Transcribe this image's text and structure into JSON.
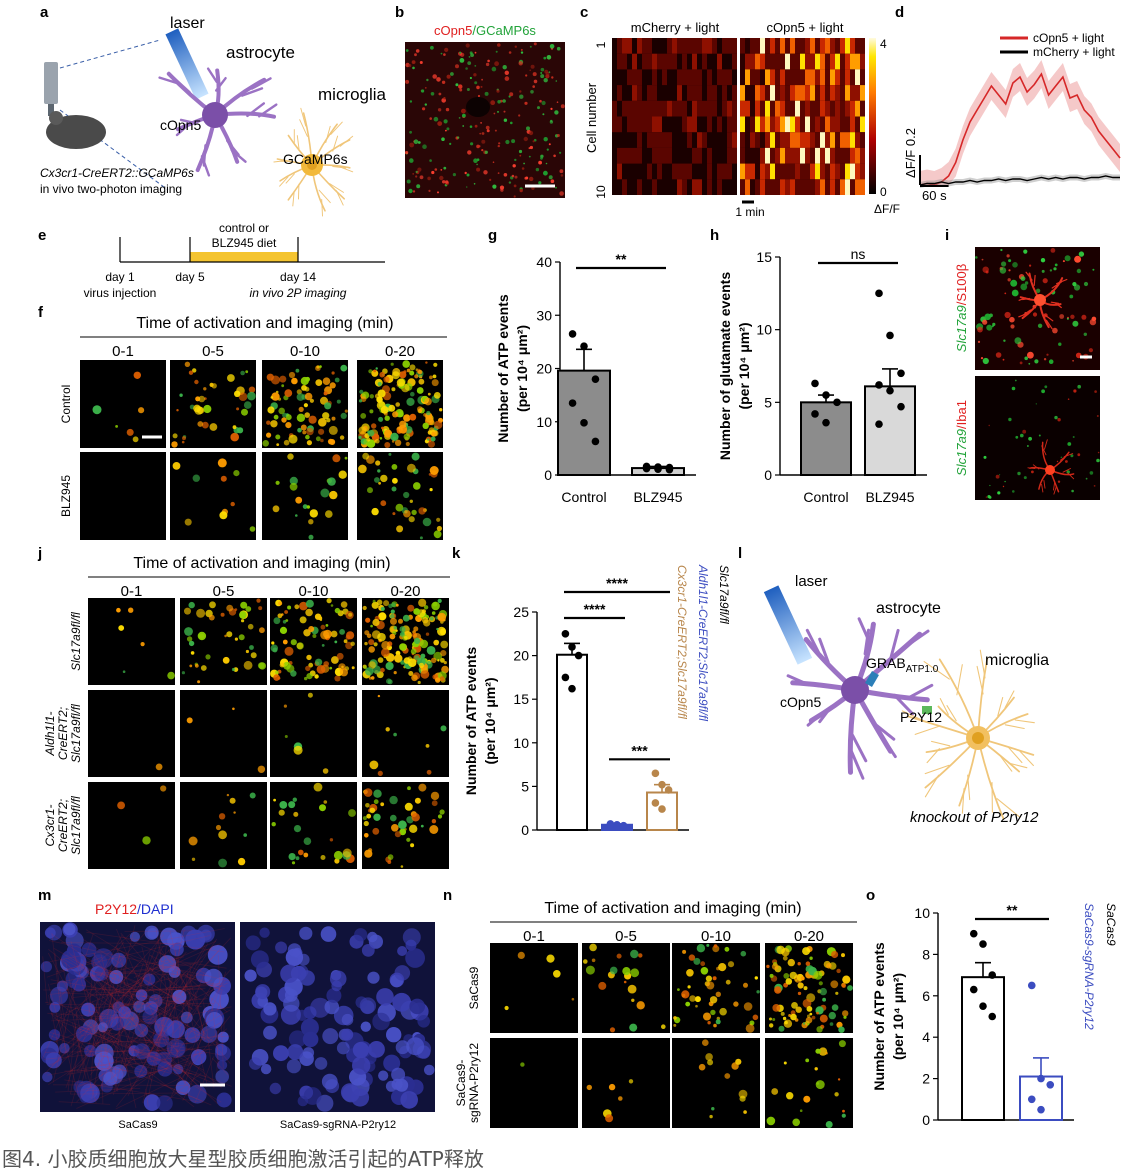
{
  "caption": "图4. 小胶质细胞放大星型胶质细胞激活引起的ATP释放",
  "panels": {
    "a": {
      "letter": "a",
      "laser": "laser",
      "astrocyte": "astrocyte",
      "microglia": "microglia",
      "cOpn5": "cOpn5",
      "GCaMP6s": "GCaMP6s",
      "mouse_line": "Cx3cr1-CreERT2::GCaMP6s",
      "imaging": "in vivo two-photon imaging"
    },
    "b": {
      "letter": "b",
      "stain_red": "cOpn5",
      "stain_green": "/GCaMP6s"
    },
    "c": {
      "letter": "c",
      "left": "mCherry + light",
      "right": "cOpn5 + light",
      "ylabel": "Cell number",
      "row_first": "1",
      "row_last": "10",
      "time_scale": "1 min",
      "cbar_max": "4",
      "cbar_min": "0",
      "cbar_label": "ΔF/F"
    },
    "e": {
      "letter": "e",
      "diet": [
        "control or",
        "BLZ945 diet"
      ],
      "day1": "day 1",
      "injection": "virus injection",
      "day5": "day 5",
      "day14": "day 14",
      "imaging": "in vivo 2P imaging"
    },
    "f": {
      "letter": "f",
      "title": "Time of activation and imaging (min)",
      "columns": [
        "0-1",
        "0-5",
        "0-10",
        "0-20"
      ],
      "rows": [
        [
          "Control"
        ],
        [
          "BLZ945"
        ]
      ]
    },
    "i": {
      "letter": "i",
      "top": [
        "Slc17a9",
        "/S100β"
      ],
      "bottom": [
        "Slc17a9",
        "/Iba1"
      ]
    },
    "j": {
      "letter": "j",
      "title": "Time of activation and imaging (min)",
      "columns": [
        "0-1",
        "0-5",
        "0-10",
        "0-20"
      ],
      "rows": [
        [
          "Slc17a9fl/fl"
        ],
        [
          "Aldh1l1-",
          "CreERT2;",
          "Slc17a9fl/fl"
        ],
        [
          "Cx3cr1-",
          "CreERT2;",
          "Slc17a9fl/fl"
        ]
      ]
    },
    "l": {
      "letter": "l",
      "laser": "laser",
      "astrocyte": "astrocyte",
      "grab": [
        "GRAB",
        "ATP1.0"
      ],
      "microglia": "microglia",
      "cOpn5": "cOpn5",
      "p2y12": "P2Y12",
      "knockout": "knockout of P2ry12"
    },
    "m": {
      "letter": "m",
      "stain_red": "P2Y12",
      "stain_blue": "/DAPI",
      "left": "SaCas9",
      "right": "SaCas9-sgRNA-P2ry12"
    },
    "n": {
      "letter": "n",
      "title": "Time of activation and imaging (min)",
      "columns": [
        "0-1",
        "0-5",
        "0-10",
        "0-20"
      ],
      "rows": [
        [
          "SaCas9"
        ],
        [
          "SaCas9-",
          "sgRNA-P2ry12"
        ]
      ]
    }
  },
  "chart_data": [
    {
      "type": "line",
      "letter": "d",
      "x": [
        0,
        15,
        30,
        45,
        60,
        75,
        90,
        105,
        120,
        135,
        150,
        165,
        180,
        195,
        210,
        225,
        240,
        255,
        270,
        285,
        300,
        315,
        330,
        345,
        360,
        375,
        390,
        405,
        420
      ],
      "xlim": [
        0,
        420
      ],
      "ylim": [
        -0.05,
        0.85
      ],
      "series": [
        {
          "name": "cOpn5 + light",
          "color": "#d62728",
          "values": [
            0,
            0.01,
            0,
            0.02,
            0.06,
            0.15,
            0.3,
            0.42,
            0.5,
            0.58,
            0.66,
            0.6,
            0.54,
            0.68,
            0.72,
            0.62,
            0.67,
            0.74,
            0.6,
            0.66,
            0.72,
            0.58,
            0.6,
            0.5,
            0.45,
            0.36,
            0.3,
            0.24,
            0.18
          ]
        },
        {
          "name": "mCherry + light",
          "color": "#000000",
          "values": [
            0,
            0.01,
            0.01,
            0.02,
            0.01,
            0.02,
            0.02,
            0.03,
            0.02,
            0.03,
            0.03,
            0.04,
            0.03,
            0.04,
            0.04,
            0.03,
            0.04,
            0.05,
            0.04,
            0.05,
            0.04,
            0.05,
            0.05,
            0.04,
            0.05,
            0.05,
            0.06,
            0.05,
            0.05
          ]
        }
      ],
      "scale_y": {
        "value": 0.2,
        "label": "ΔF/F 0.2"
      },
      "scale_x": {
        "value": 60,
        "label": "60 s"
      }
    },
    {
      "type": "bar",
      "letter": "g",
      "ylabel": [
        "Number of ATP events",
        "(per 10⁴ μm²)"
      ],
      "categories": [
        "Control",
        "BLZ945"
      ],
      "category_labels": "below",
      "values": [
        19.6,
        1.3
      ],
      "errors": [
        4.0,
        0.3
      ],
      "points": [
        [
          26.5,
          24.2,
          18,
          13.5,
          9.8,
          6.3
        ],
        [
          1.6,
          1.5,
          1.4,
          1.2,
          1.1,
          1.0
        ]
      ],
      "colors": [
        "#000000",
        "#000000"
      ],
      "fills": [
        "#8c8c8c",
        "#cfcfcf"
      ],
      "ylim": [
        0,
        40
      ],
      "yticks": [
        0,
        10,
        20,
        30,
        40
      ],
      "comparisons": [
        {
          "groups": [
            "Control",
            "BLZ945"
          ],
          "label": "**"
        }
      ]
    },
    {
      "type": "bar",
      "letter": "h",
      "ylabel": [
        "Number of glutamate events",
        "(per 10⁴ μm²)"
      ],
      "categories": [
        "Control",
        "BLZ945"
      ],
      "category_labels": "below",
      "values": [
        5.0,
        6.1
      ],
      "errors": [
        0.5,
        1.2
      ],
      "points": [
        [
          6.3,
          5.5,
          5.0,
          4.2,
          3.6
        ],
        [
          12.5,
          9.6,
          7.0,
          6.2,
          5.8,
          4.7,
          3.5
        ]
      ],
      "colors": [
        "#000000",
        "#000000"
      ],
      "fills": [
        "#8c8c8c",
        "#d9d9d9"
      ],
      "ylim": [
        0,
        15
      ],
      "yticks": [
        0,
        5,
        10,
        15
      ],
      "comparisons": [
        {
          "groups": [
            "Control",
            "BLZ945"
          ],
          "label": "ns"
        }
      ]
    },
    {
      "type": "bar",
      "letter": "k",
      "ylabel": [
        "Number of ATP events",
        "(per 10⁴ μm²)"
      ],
      "categories": [
        "Slc17a9fl/fl",
        "Aldh1l1-CreERT2;Slc17a9fl/fl",
        "Cx3cr1-CreERT2;Slc17a9fl/fl"
      ],
      "category_labels": "legend",
      "values": [
        20.1,
        0.6,
        4.3
      ],
      "errors": [
        1.3,
        0.1,
        0.9
      ],
      "points": [
        [
          22.5,
          21,
          20,
          17.5,
          16.2
        ],
        [
          0.7,
          0.6,
          0.5,
          0.6,
          0.5
        ],
        [
          6.5,
          5.2,
          4.6,
          3.1,
          2.4
        ]
      ],
      "colors": [
        "#000000",
        "#3b4cc0",
        "#b8864b"
      ],
      "fills": [
        "#ffffff",
        "#3b4cc0",
        "#ffffff"
      ],
      "ylim": [
        0,
        25
      ],
      "yticks": [
        0,
        5,
        10,
        15,
        20,
        25
      ],
      "comparisons": [
        {
          "groups": [
            "Slc17a9fl/fl",
            "Cx3cr1-CreERT2;Slc17a9fl/fl"
          ],
          "label": "****"
        },
        {
          "groups": [
            "Slc17a9fl/fl",
            "Aldh1l1-CreERT2;Slc17a9fl/fl"
          ],
          "label": "****"
        },
        {
          "groups": [
            "Aldh1l1-CreERT2;Slc17a9fl/fl",
            "Cx3cr1-CreERT2;Slc17a9fl/fl"
          ],
          "label": "***"
        }
      ]
    },
    {
      "type": "bar",
      "letter": "o",
      "ylabel": [
        "Number of ATP events",
        "(per 10⁴ μm²)"
      ],
      "categories": [
        "SaCas9",
        "SaCas9-sgRNA-P2ry12"
      ],
      "category_labels": "legend",
      "values": [
        6.9,
        2.1
      ],
      "errors": [
        0.7,
        0.9
      ],
      "points": [
        [
          9,
          8.5,
          7,
          6.3,
          5.5,
          5
        ],
        [
          6.5,
          2.0,
          1.7,
          1.0,
          0.5
        ]
      ],
      "colors": [
        "#000000",
        "#3b4cc0"
      ],
      "fills": [
        "#ffffff",
        "#ffffff"
      ],
      "ylim": [
        0,
        10
      ],
      "yticks": [
        0,
        2,
        4,
        6,
        8,
        10
      ],
      "comparisons": [
        {
          "groups": [
            "SaCas9",
            "SaCas9-sgRNA-P2ry12"
          ],
          "label": "**"
        }
      ]
    }
  ]
}
